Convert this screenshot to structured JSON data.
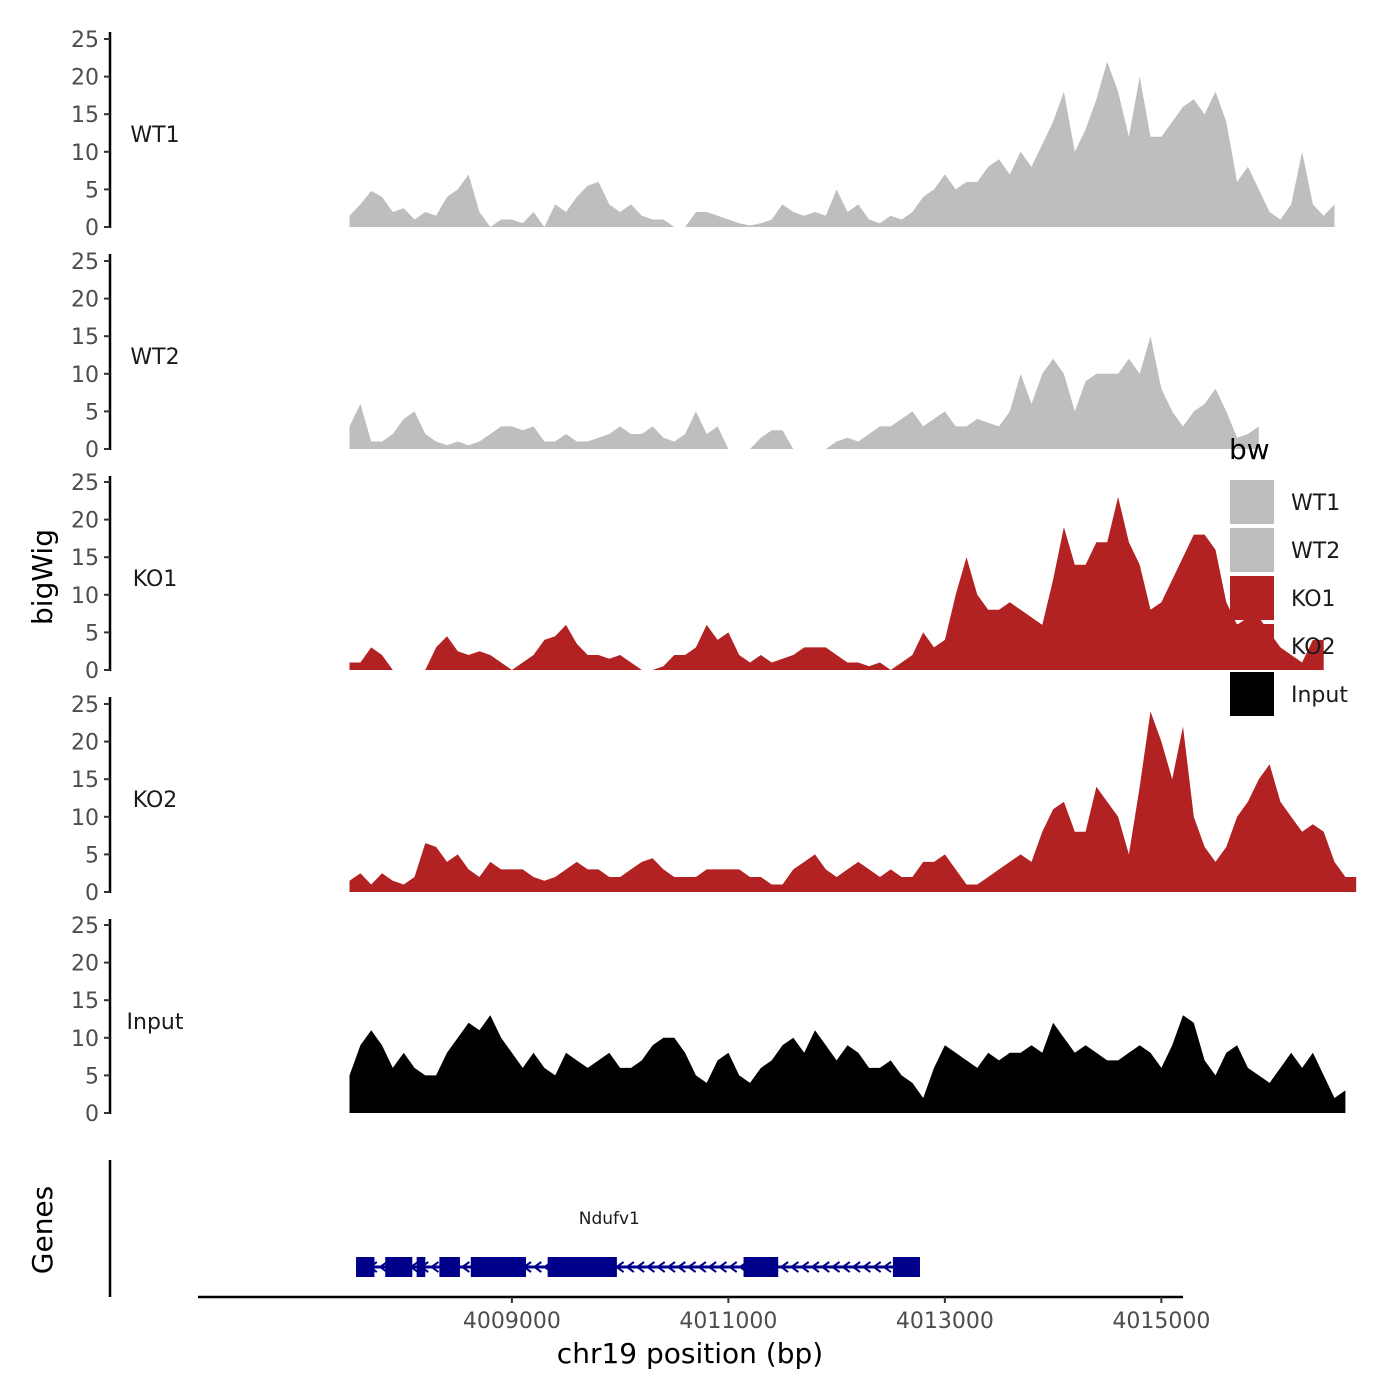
{
  "chart_data": {
    "type": "area",
    "title": "",
    "ylabel": "bigWig",
    "xlabel": "chr19 position (bp)",
    "genes_label": "Genes",
    "xlim": [
      4006100,
      4015200
    ],
    "ylim": [
      0,
      25
    ],
    "x_ticks": [
      4009000,
      4011000,
      4013000,
      4015000
    ],
    "x_tick_labels": [
      "4009000",
      "4011000",
      "4013000",
      "4015000"
    ],
    "y_ticks": [
      0,
      5,
      10,
      15,
      20,
      25
    ],
    "y_tick_labels": [
      "0",
      "5",
      "10",
      "15",
      "20",
      "25"
    ],
    "x_start": 4007500,
    "x_step": 100,
    "legend": {
      "title": "bw",
      "entries": [
        {
          "label": "WT1",
          "color": "#bebebe"
        },
        {
          "label": "WT2",
          "color": "#bebebe"
        },
        {
          "label": "KO1",
          "color": "#b22222"
        },
        {
          "label": "KO2",
          "color": "#b22222"
        },
        {
          "label": "Input",
          "color": "#000000"
        }
      ]
    },
    "series": [
      {
        "name": "WT1",
        "color": "#bebebe",
        "values": [
          1.5,
          3,
          4.8,
          4,
          2,
          2.5,
          1,
          2,
          1.5,
          4,
          5,
          7,
          2,
          0,
          1,
          1,
          0.5,
          2,
          0,
          3,
          2,
          4,
          5.5,
          6,
          3,
          2,
          3,
          1.5,
          1,
          1,
          0,
          0,
          2,
          2,
          1.5,
          1,
          0.5,
          0.2,
          0.5,
          1,
          3,
          2,
          1.5,
          2,
          1.5,
          5,
          2,
          3,
          1,
          0.5,
          1.5,
          1,
          2,
          4,
          5,
          7,
          5,
          6,
          6,
          8,
          9,
          7,
          10,
          8,
          11,
          14,
          18,
          10,
          13,
          17,
          22,
          18,
          12,
          20,
          12,
          12,
          14,
          16,
          17,
          15,
          18,
          14,
          6,
          8,
          5,
          2,
          1,
          3,
          10,
          3,
          1.5,
          3
        ]
      },
      {
        "name": "WT2",
        "color": "#bebebe",
        "values": [
          3,
          6,
          1,
          1,
          2,
          4,
          5,
          2,
          1,
          0.5,
          1,
          0.5,
          1,
          2,
          3,
          3,
          2.5,
          3,
          1,
          1,
          2,
          1,
          1,
          1.5,
          2,
          3,
          2,
          2,
          3,
          1.5,
          1,
          2,
          5,
          2,
          3,
          0,
          0,
          0,
          1.5,
          2.5,
          2.5,
          0,
          0,
          0,
          0,
          1,
          1.5,
          1,
          2,
          3,
          3,
          4,
          5,
          3,
          4,
          5,
          3,
          3,
          4,
          3.5,
          3,
          5,
          10,
          6,
          10,
          12,
          10,
          5,
          9,
          10,
          10,
          10,
          12,
          10,
          15,
          8,
          5,
          3,
          5,
          6,
          8,
          5,
          1.5,
          2,
          3
        ]
      },
      {
        "name": "KO1",
        "color": "#b22222",
        "values": [
          1,
          1,
          3,
          2,
          0,
          0,
          0,
          0,
          3,
          4.5,
          2.5,
          2,
          2.5,
          2,
          1,
          0,
          1,
          2,
          4,
          4.5,
          6,
          3.5,
          2,
          2,
          1.5,
          2,
          1,
          0,
          0,
          0.5,
          2,
          2,
          3,
          6,
          4,
          5,
          2,
          1,
          2,
          1,
          1.5,
          2,
          3,
          3,
          3,
          2,
          1,
          1,
          0.5,
          1,
          0,
          1,
          2,
          5,
          3,
          4,
          10,
          15,
          10,
          8,
          8,
          9,
          8,
          7,
          6,
          12,
          19,
          14,
          14,
          17,
          17,
          23,
          17,
          14,
          8,
          9,
          12,
          15,
          18,
          18,
          16,
          9,
          6,
          7,
          7,
          5,
          3,
          2,
          1,
          4,
          4
        ]
      },
      {
        "name": "KO2",
        "color": "#b22222",
        "values": [
          1.5,
          2.5,
          1,
          2.5,
          1.5,
          1,
          2,
          6.5,
          6,
          4,
          5,
          3,
          2,
          4,
          3,
          3,
          3,
          2,
          1.5,
          2,
          3,
          4,
          3,
          3,
          2,
          2,
          3,
          4,
          4.5,
          3,
          2,
          2,
          2,
          3,
          3,
          3,
          3,
          2,
          2,
          1,
          1,
          3,
          4,
          5,
          3,
          2,
          3,
          4,
          3,
          2,
          3,
          2,
          2,
          4,
          4,
          5,
          3,
          1,
          1,
          2,
          3,
          4,
          5,
          4,
          8,
          11,
          12,
          8,
          8,
          14,
          12,
          10,
          5,
          14,
          24,
          20,
          15,
          22,
          10,
          6,
          4,
          6,
          10,
          12,
          15,
          17,
          12,
          10,
          8,
          9,
          8,
          4,
          2,
          2
        ]
      },
      {
        "name": "Input",
        "color": "#000000",
        "values": [
          5,
          9,
          11,
          9,
          6,
          8,
          6,
          5,
          5,
          8,
          10,
          12,
          11,
          13,
          10,
          8,
          6,
          8,
          6,
          5,
          8,
          7,
          6,
          7,
          8,
          6,
          6,
          7,
          9,
          10,
          10,
          8,
          5,
          4,
          7,
          8,
          5,
          4,
          6,
          7,
          9,
          10,
          8,
          11,
          9,
          7,
          9,
          8,
          6,
          6,
          7,
          5,
          4,
          2,
          6,
          9,
          8,
          7,
          6,
          8,
          7,
          8,
          8,
          9,
          8,
          12,
          10,
          8,
          9,
          8,
          7,
          7,
          8,
          9,
          8,
          6,
          9,
          13,
          12,
          7,
          5,
          8,
          9,
          6,
          5,
          4,
          6,
          8,
          6,
          8,
          5,
          2,
          3
        ]
      }
    ],
    "gene": {
      "name": "Ndufv1",
      "start": 4007560,
      "end": 4012770,
      "strand": "-",
      "exons": [
        [
          4007560,
          4007730
        ],
        [
          4007830,
          4008080
        ],
        [
          4008120,
          4008200
        ],
        [
          4008330,
          4008520
        ],
        [
          4008620,
          4009130
        ],
        [
          4009330,
          4009970
        ],
        [
          4011140,
          4011460
        ],
        [
          4012520,
          4012770
        ]
      ],
      "color": "#00008b"
    }
  }
}
